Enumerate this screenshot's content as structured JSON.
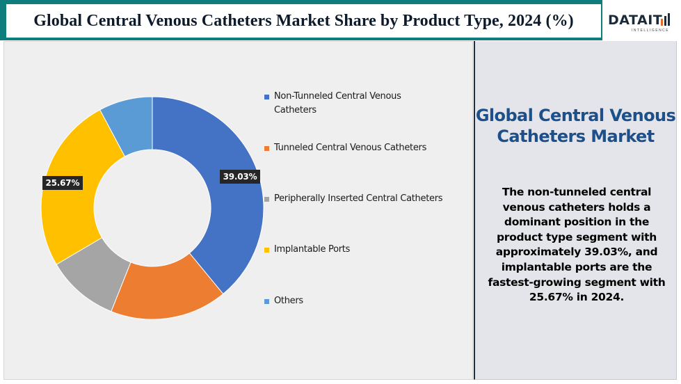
{
  "header": {
    "title": "Global Central Venous Catheters Market Share by Product Type, 2024 (%)"
  },
  "logo": {
    "text": "DATAIT",
    "sub": "INTELLIGENCE",
    "icon": "bar-chart-icon"
  },
  "side_panel": {
    "title": "Global Central Venous Catheters Market",
    "body": "The non-tunneled central venous catheters holds a dominant position in the product type segment with approximately 39.03%, and implantable ports are the fastest-growing segment with 25.67% in 2024."
  },
  "chart_data": {
    "type": "pie",
    "variant": "donut",
    "title": "Global Central Venous Catheters Market Share by Product Type, 2024 (%)",
    "unit": "%",
    "legend_position": "right",
    "categories": [
      "Non-Tunneled Central Venous Catheters",
      "Tunneled Central Venous Catheters",
      "Peripherally Inserted Central Catheters",
      "Implantable Ports",
      "Others"
    ],
    "values": [
      39.03,
      17.0,
      10.5,
      25.67,
      7.8
    ],
    "colors": [
      "#4472c4",
      "#ed7d31",
      "#a5a5a5",
      "#ffc000",
      "#5b9bd5"
    ],
    "data_labels": [
      {
        "index": 0,
        "text": "39.03%"
      },
      {
        "index": 3,
        "text": "25.67%"
      }
    ]
  }
}
